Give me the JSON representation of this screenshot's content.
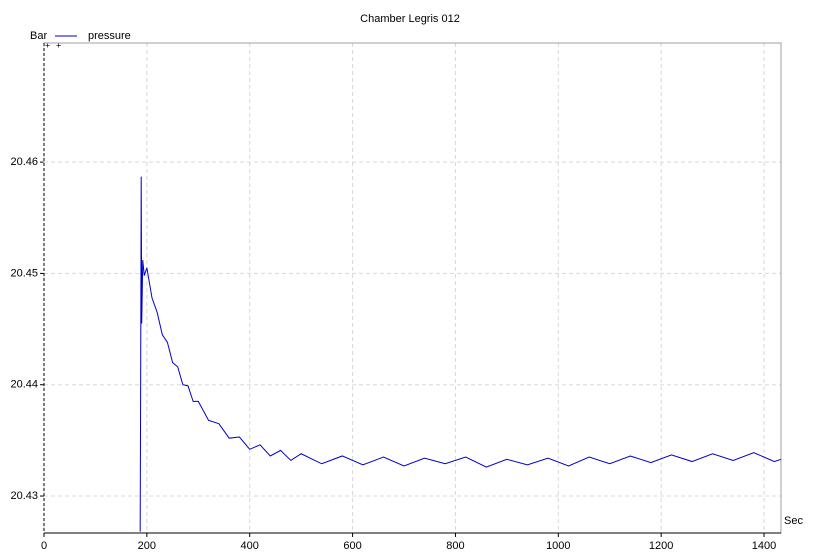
{
  "chart_data": {
    "type": "line",
    "title": "Chamber Legris 012",
    "x_label": "Sec",
    "y_label": "Bar",
    "x": [
      187,
      188,
      189,
      190,
      192,
      195,
      200,
      210,
      220,
      230,
      240,
      250,
      260,
      270,
      280,
      290,
      300,
      320,
      340,
      360,
      380,
      400,
      420,
      440,
      460,
      480,
      500,
      540,
      580,
      620,
      660,
      700,
      740,
      780,
      820,
      860,
      900,
      940,
      980,
      1020,
      1060,
      1100,
      1140,
      1180,
      1220,
      1260,
      1300,
      1340,
      1380,
      1420,
      1433
    ],
    "series": [
      {
        "name": "pressure",
        "color": "#0000cc",
        "values": [
          20.4268,
          20.441,
          20.4587,
          20.4455,
          20.4512,
          20.4498,
          20.4505,
          20.4478,
          20.4465,
          20.4445,
          20.4438,
          20.442,
          20.4416,
          20.44,
          20.4399,
          20.4385,
          20.4385,
          20.4368,
          20.4365,
          20.4352,
          20.4353,
          20.4342,
          20.4346,
          20.4336,
          20.4341,
          20.4332,
          20.4338,
          20.4329,
          20.4336,
          20.4328,
          20.4335,
          20.4327,
          20.4334,
          20.4329,
          20.4335,
          20.4326,
          20.4333,
          20.4328,
          20.4334,
          20.4327,
          20.4335,
          20.4329,
          20.4336,
          20.433,
          20.4337,
          20.4331,
          20.4338,
          20.4332,
          20.4339,
          20.4331,
          20.4333
        ]
      }
    ],
    "xlim": [
      0,
      1433
    ],
    "ylim": [
      20.42668,
      20.4707
    ],
    "xticks": [
      0,
      200,
      400,
      600,
      800,
      1000,
      1200,
      1400
    ],
    "yticks": [
      20.43,
      20.44,
      20.45,
      20.46
    ],
    "grid": true,
    "legend": "top-left"
  }
}
